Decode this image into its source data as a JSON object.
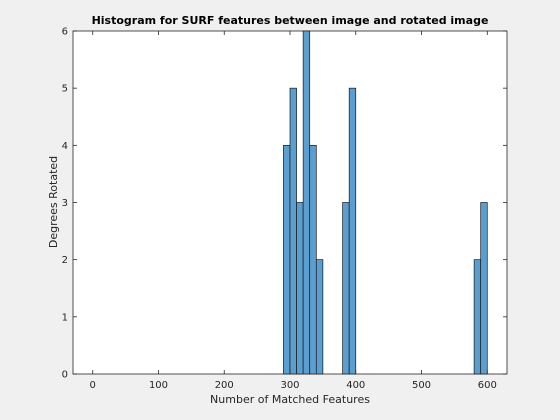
{
  "chart_data": {
    "type": "bar",
    "title": "Histogram for SURF features between image and rotated image",
    "xlabel": "Number of Matched Features",
    "ylabel": "Degrees Rotated",
    "xlim": [
      -30,
      630
    ],
    "ylim": [
      0,
      6
    ],
    "xticks": [
      0,
      100,
      200,
      300,
      400,
      500,
      600
    ],
    "yticks": [
      0,
      1,
      2,
      3,
      4,
      5,
      6
    ],
    "bin_width": 10,
    "bins": [
      {
        "start": 290,
        "end": 300,
        "value": 4
      },
      {
        "start": 300,
        "end": 310,
        "value": 5
      },
      {
        "start": 310,
        "end": 320,
        "value": 3
      },
      {
        "start": 320,
        "end": 330,
        "value": 6
      },
      {
        "start": 330,
        "end": 340,
        "value": 4
      },
      {
        "start": 340,
        "end": 350,
        "value": 2
      },
      {
        "start": 350,
        "end": 360,
        "value": 0
      },
      {
        "start": 360,
        "end": 370,
        "value": 0
      },
      {
        "start": 370,
        "end": 380,
        "value": 0
      },
      {
        "start": 380,
        "end": 390,
        "value": 3
      },
      {
        "start": 390,
        "end": 400,
        "value": 5
      },
      {
        "start": 580,
        "end": 590,
        "value": 2
      },
      {
        "start": 590,
        "end": 600,
        "value": 3
      }
    ],
    "grid": false,
    "bar_color": "#5b9fd1",
    "bar_edge_color": "#1a1a1a",
    "axes_background": "#ffffff",
    "figure_background": "#f0f0f0"
  }
}
